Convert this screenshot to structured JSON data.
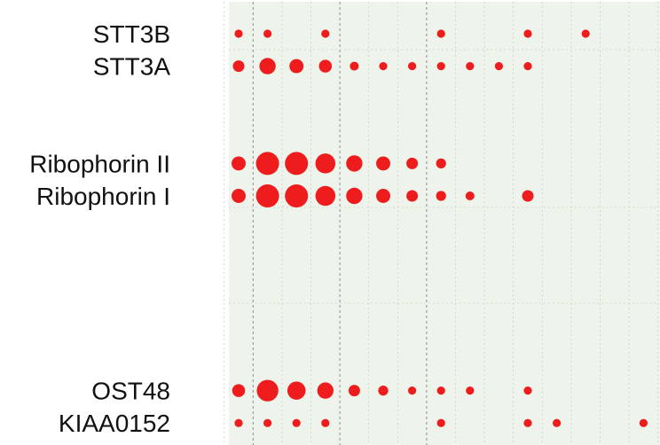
{
  "chart_data": {
    "type": "scatter",
    "style": "dot matrix (bubble size encodes magnitude)",
    "rows": [
      "STT3B",
      "STT3A",
      "Ribophorin II",
      "Ribophorin I",
      "OST48",
      "KIAA0152"
    ],
    "columns": 15,
    "values": [
      [
        1,
        1,
        0,
        1,
        0,
        0,
        0,
        1,
        0,
        0,
        1,
        0,
        1,
        0,
        0
      ],
      [
        2,
        4,
        3,
        2.5,
        1.2,
        1,
        1,
        1,
        1,
        1,
        1,
        0,
        0,
        0,
        0
      ],
      [
        0,
        0,
        0,
        0,
        0,
        0,
        0,
        0,
        0,
        0,
        0,
        0,
        0,
        0,
        0
      ],
      [
        0,
        0,
        0,
        0,
        0,
        0,
        0,
        0,
        0,
        0,
        0,
        0,
        0,
        0,
        0
      ],
      [
        3,
        8,
        8,
        6,
        4,
        3,
        2,
        1.5,
        0,
        0,
        0,
        0,
        0,
        0,
        0
      ],
      [
        3,
        8,
        8,
        6,
        4,
        3,
        2,
        1.5,
        1.2,
        0,
        2,
        0,
        0,
        0,
        0
      ],
      [
        0,
        0,
        0,
        0,
        0,
        0,
        0,
        0,
        0,
        0,
        0,
        0,
        0,
        0,
        0
      ],
      [
        0,
        0,
        0,
        0,
        0,
        0,
        0,
        0,
        0,
        0,
        0,
        0,
        0,
        0,
        0
      ],
      [
        0,
        0,
        0,
        0,
        0,
        0,
        0,
        0,
        0,
        0,
        0,
        0,
        0,
        0,
        0
      ],
      [
        0,
        0,
        0,
        0,
        0,
        0,
        0,
        0,
        0,
        0,
        0,
        0,
        0,
        0,
        0
      ],
      [
        0,
        0,
        0,
        0,
        0,
        0,
        0,
        0,
        0,
        0,
        0,
        0,
        0,
        0,
        0
      ],
      [
        2.5,
        7,
        5,
        4,
        2,
        1.5,
        1,
        1,
        1,
        0,
        1,
        0,
        0,
        0,
        0
      ],
      [
        1,
        1,
        1,
        1,
        0,
        0,
        0,
        1,
        0,
        0,
        1,
        1,
        0,
        0,
        1
      ]
    ],
    "row_labels": [
      {
        "text": "STT3B",
        "row": 0
      },
      {
        "text": "STT3A",
        "row": 1
      },
      {
        "text": "Ribophorin II",
        "row": 4
      },
      {
        "text": "Ribophorin I",
        "row": 5
      },
      {
        "text": "OST48",
        "row": 11
      },
      {
        "text": "KIAA0152",
        "row": 12
      }
    ],
    "colors": {
      "dot": "#ee1c1c",
      "panel_background": "#eef4ec",
      "gridline": "#c9d2c6",
      "major_gridline": "#8c8c8c"
    },
    "grid": true,
    "legend": "none"
  }
}
